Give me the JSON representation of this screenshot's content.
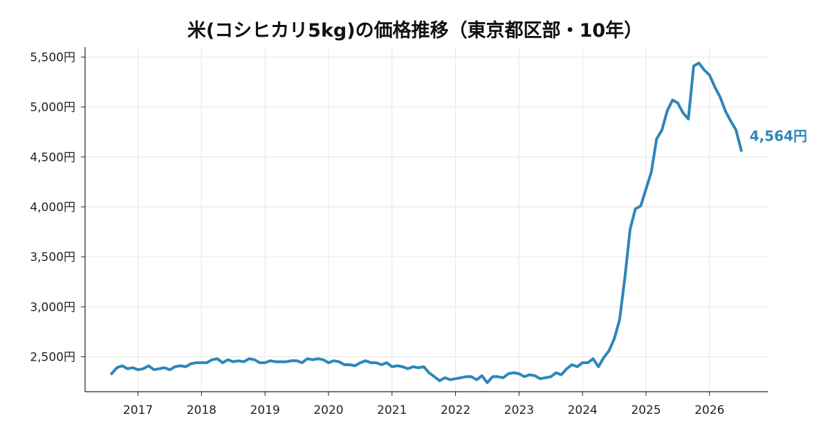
{
  "chart_data": {
    "type": "line",
    "title": "米(コシヒカリ5kg)の価格推移（東京都区部・10年）",
    "xlabel": "",
    "ylabel": "",
    "x_start": "2016-08",
    "x_end": "2026-07",
    "xlim": [
      "2016-03",
      "2026-12"
    ],
    "ylim": [
      2150,
      5600
    ],
    "x_tick_labels": [
      "2017",
      "2018",
      "2019",
      "2020",
      "2021",
      "2022",
      "2023",
      "2024",
      "2025",
      "2026"
    ],
    "y_ticks": [
      2500,
      3000,
      3500,
      4000,
      4500,
      5000,
      5500
    ],
    "y_tick_labels": [
      "2,500円",
      "3,000円",
      "3,500円",
      "4,000円",
      "4,500円",
      "5,000円",
      "5,500円"
    ],
    "grid": true,
    "series": [
      {
        "color": "#2e86b8",
        "values": [
          2330,
          2390,
          2410,
          2380,
          2390,
          2370,
          2380,
          2410,
          2370,
          2380,
          2390,
          2370,
          2400,
          2410,
          2400,
          2430,
          2440,
          2440,
          2440,
          2470,
          2480,
          2440,
          2470,
          2450,
          2460,
          2450,
          2480,
          2470,
          2440,
          2440,
          2460,
          2450,
          2450,
          2450,
          2460,
          2460,
          2440,
          2480,
          2470,
          2480,
          2470,
          2440,
          2460,
          2450,
          2420,
          2420,
          2410,
          2440,
          2460,
          2440,
          2440,
          2420,
          2440,
          2400,
          2410,
          2400,
          2380,
          2400,
          2390,
          2400,
          2340,
          2300,
          2260,
          2290,
          2270,
          2280,
          2290,
          2300,
          2300,
          2270,
          2310,
          2240,
          2300,
          2300,
          2290,
          2330,
          2340,
          2330,
          2300,
          2320,
          2310,
          2280,
          2290,
          2300,
          2340,
          2320,
          2380,
          2420,
          2400,
          2440,
          2440,
          2480,
          2400,
          2490,
          2560,
          2680,
          2870,
          3290,
          3780,
          3980,
          4010,
          4180,
          4350,
          4680,
          4770,
          4960,
          5070,
          5040,
          4940,
          4880,
          5410,
          5440,
          5370,
          5320,
          5200,
          5100,
          4960,
          4860,
          4770,
          4564
        ]
      }
    ],
    "end_label": "4,564円"
  }
}
